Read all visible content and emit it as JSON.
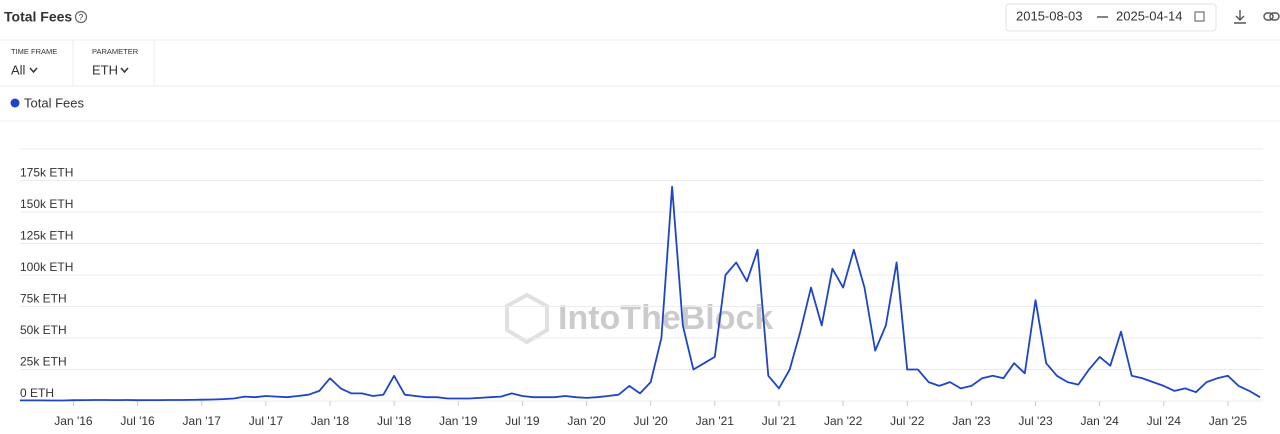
{
  "header": {
    "title": "Total Fees",
    "date_from": "2015-08-03",
    "date_to": "2025-04-14"
  },
  "filters": [
    {
      "label": "TIME FRAME",
      "value": "All"
    },
    {
      "label": "PARAMETER",
      "value": "ETH"
    }
  ],
  "chart_data": {
    "type": "line",
    "watermark": "IntoTheBlock",
    "x": [
      "2015-08",
      "2015-09",
      "2015-10",
      "2015-11",
      "2015-12",
      "2016-01",
      "2016-02",
      "2016-03",
      "2016-04",
      "2016-05",
      "2016-06",
      "2016-07",
      "2016-08",
      "2016-09",
      "2016-10",
      "2016-11",
      "2016-12",
      "2017-01",
      "2017-02",
      "2017-03",
      "2017-04",
      "2017-05",
      "2017-06",
      "2017-07",
      "2017-08",
      "2017-09",
      "2017-10",
      "2017-11",
      "2017-12",
      "2018-01",
      "2018-02",
      "2018-03",
      "2018-04",
      "2018-05",
      "2018-06",
      "2018-07",
      "2018-08",
      "2018-09",
      "2018-10",
      "2018-11",
      "2018-12",
      "2019-01",
      "2019-02",
      "2019-03",
      "2019-04",
      "2019-05",
      "2019-06",
      "2019-07",
      "2019-08",
      "2019-09",
      "2019-10",
      "2019-11",
      "2019-12",
      "2020-01",
      "2020-02",
      "2020-03",
      "2020-04",
      "2020-05",
      "2020-06",
      "2020-07",
      "2020-08",
      "2020-09",
      "2020-10",
      "2020-11",
      "2020-12",
      "2021-01",
      "2021-02",
      "2021-03",
      "2021-04",
      "2021-05",
      "2021-06",
      "2021-07",
      "2021-08",
      "2021-09",
      "2021-10",
      "2021-11",
      "2021-12",
      "2022-01",
      "2022-02",
      "2022-03",
      "2022-04",
      "2022-05",
      "2022-06",
      "2022-07",
      "2022-08",
      "2022-09",
      "2022-10",
      "2022-11",
      "2022-12",
      "2023-01",
      "2023-02",
      "2023-03",
      "2023-04",
      "2023-05",
      "2023-06",
      "2023-07",
      "2023-08",
      "2023-09",
      "2023-10",
      "2023-11",
      "2023-12",
      "2024-01",
      "2024-02",
      "2024-03",
      "2024-04",
      "2024-05",
      "2024-06",
      "2024-07",
      "2024-08",
      "2024-09",
      "2024-10",
      "2024-11",
      "2024-12",
      "2025-01",
      "2025-02",
      "2025-03",
      "2025-04"
    ],
    "series": [
      {
        "name": "Total Fees",
        "color": "#1f45c7",
        "values": [
          500,
          500,
          500,
          400,
          400,
          600,
          700,
          800,
          800,
          700,
          800,
          600,
          700,
          700,
          800,
          800,
          900,
          1000,
          1200,
          1500,
          2000,
          3500,
          3000,
          4000,
          3500,
          3000,
          4000,
          5000,
          8000,
          18000,
          10000,
          6000,
          6000,
          4000,
          5000,
          20000,
          5000,
          4000,
          3000,
          3000,
          2000,
          2000,
          2000,
          2500,
          3000,
          3500,
          6000,
          4000,
          3000,
          3000,
          3000,
          4000,
          3000,
          2500,
          3000,
          4000,
          5000,
          12000,
          6000,
          15000,
          50000,
          170000,
          60000,
          25000,
          30000,
          35000,
          100000,
          110000,
          95000,
          120000,
          20000,
          10000,
          25000,
          55000,
          90000,
          60000,
          105000,
          90000,
          120000,
          90000,
          40000,
          60000,
          110000,
          25000,
          25000,
          15000,
          12000,
          15000,
          10000,
          12000,
          18000,
          20000,
          18000,
          30000,
          22000,
          80000,
          30000,
          20000,
          15000,
          13000,
          25000,
          35000,
          28000,
          55000,
          20000,
          18000,
          15000,
          12000,
          8000,
          10000,
          7000,
          15000,
          18000,
          20000,
          12000,
          8000,
          3000
        ]
      }
    ],
    "xlim": [
      "2015-08",
      "2025-04"
    ],
    "xticks": [
      {
        "value": "2016-01",
        "label": "Jan '16"
      },
      {
        "value": "2016-07",
        "label": "Jul '16"
      },
      {
        "value": "2017-01",
        "label": "Jan '17"
      },
      {
        "value": "2017-07",
        "label": "Jul '17"
      },
      {
        "value": "2018-01",
        "label": "Jan '18"
      },
      {
        "value": "2018-07",
        "label": "Jul '18"
      },
      {
        "value": "2019-01",
        "label": "Jan '19"
      },
      {
        "value": "2019-07",
        "label": "Jul '19"
      },
      {
        "value": "2020-01",
        "label": "Jan '20"
      },
      {
        "value": "2020-07",
        "label": "Jul '20"
      },
      {
        "value": "2021-01",
        "label": "Jan '21"
      },
      {
        "value": "2021-07",
        "label": "Jul '21"
      },
      {
        "value": "2022-01",
        "label": "Jan '22"
      },
      {
        "value": "2022-07",
        "label": "Jul '22"
      },
      {
        "value": "2023-01",
        "label": "Jan '23"
      },
      {
        "value": "2023-07",
        "label": "Jul '23"
      },
      {
        "value": "2024-01",
        "label": "Jan '24"
      },
      {
        "value": "2024-07",
        "label": "Jul '24"
      },
      {
        "value": "2025-01",
        "label": "Jan '25"
      }
    ],
    "ylim": [
      0,
      200000
    ],
    "yticks": [
      {
        "value": 0,
        "label": "0 ETH"
      },
      {
        "value": 25000,
        "label": "25k ETH"
      },
      {
        "value": 50000,
        "label": "50k ETH"
      },
      {
        "value": 75000,
        "label": "75k ETH"
      },
      {
        "value": 100000,
        "label": "100k ETH"
      },
      {
        "value": 125000,
        "label": "125k ETH"
      },
      {
        "value": 150000,
        "label": "150k ETH"
      },
      {
        "value": 175000,
        "label": "175k ETH"
      }
    ],
    "grid": true
  }
}
